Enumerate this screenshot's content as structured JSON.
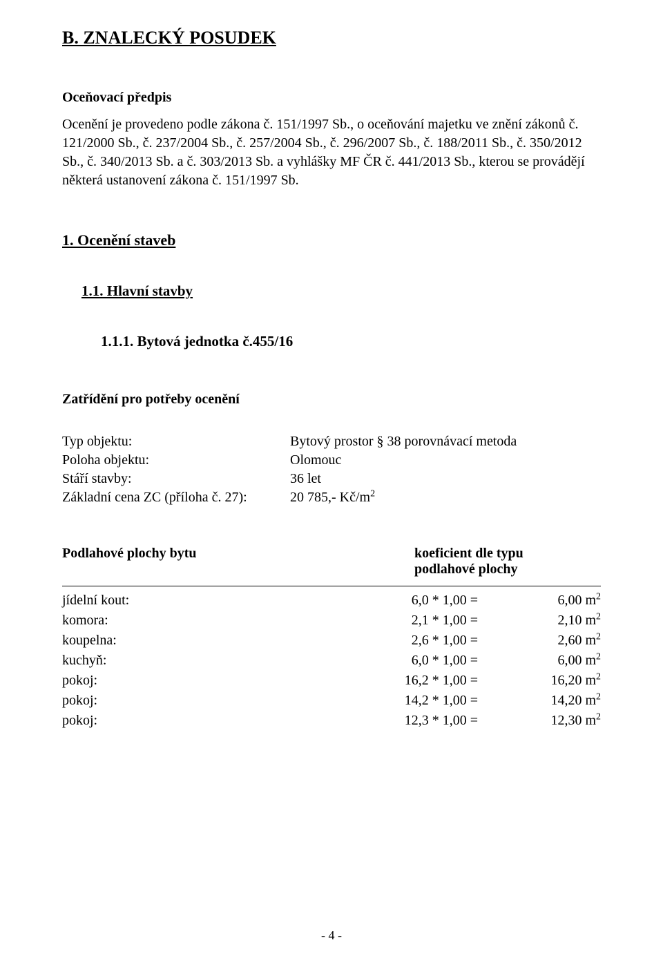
{
  "title": "B. ZNALECKÝ POSUDEK",
  "ocenovaci_predpis": {
    "label": "Oceňovací předpis",
    "text": "Ocenění je provedeno podle zákona č. 151/1997 Sb., o oceňování majetku ve znění zákonů č. 121/2000 Sb., č. 237/2004 Sb., č. 257/2004 Sb., č. 296/2007 Sb., č. 188/2011 Sb., č. 350/2012 Sb., č. 340/2013 Sb. a č. 303/2013 Sb. a vyhlášky MF ČR č. 441/2013 Sb., kterou se provádějí některá ustanovení zákona č. 151/1997 Sb."
  },
  "sec1": "1. Ocenění staveb",
  "sec11": "1.1. Hlavní stavby",
  "sec111": "1.1.1. Bytová jednotka č.455/16",
  "classification_label": "Zatřídění pro potřeby ocenění",
  "props": [
    {
      "key": "Typ objektu:",
      "val": "Bytový prostor § 38 porovnávací metoda"
    },
    {
      "key": "Poloha objektu:",
      "val": "Olomouc"
    },
    {
      "key": "Stáří stavby:",
      "val": "36 let"
    },
    {
      "key": "Základní cena ZC (příloha č. 27):",
      "val_html": "20 785,- Kč/m<sup>2</sup>"
    }
  ],
  "floor": {
    "left_heading": "Podlahové plochy bytu",
    "right_heading_line1": "koeficient dle typu",
    "right_heading_line2": "podlahové plochy",
    "rows": [
      {
        "label": "jídelní kout:",
        "mid": "6,0 *  1,00 =",
        "res_html": "6,00 m<sup>2</sup>"
      },
      {
        "label": "komora:",
        "mid": "2,1 *  1,00 =",
        "res_html": "2,10 m<sup>2</sup>"
      },
      {
        "label": "koupelna:",
        "mid": "2,6 *  1,00 =",
        "res_html": "2,60 m<sup>2</sup>"
      },
      {
        "label": "kuchyň:",
        "mid": "6,0 *  1,00 =",
        "res_html": "6,00 m<sup>2</sup>"
      },
      {
        "label": "pokoj:",
        "mid": "16,2 *  1,00 =",
        "res_html": "16,20 m<sup>2</sup>"
      },
      {
        "label": "pokoj:",
        "mid": "14,2 *  1,00 =",
        "res_html": "14,20 m<sup>2</sup>"
      },
      {
        "label": "pokoj:",
        "mid": "12,3 *  1,00 =",
        "res_html": "12,30 m<sup>2</sup>"
      }
    ]
  },
  "page_number": "- 4 -"
}
